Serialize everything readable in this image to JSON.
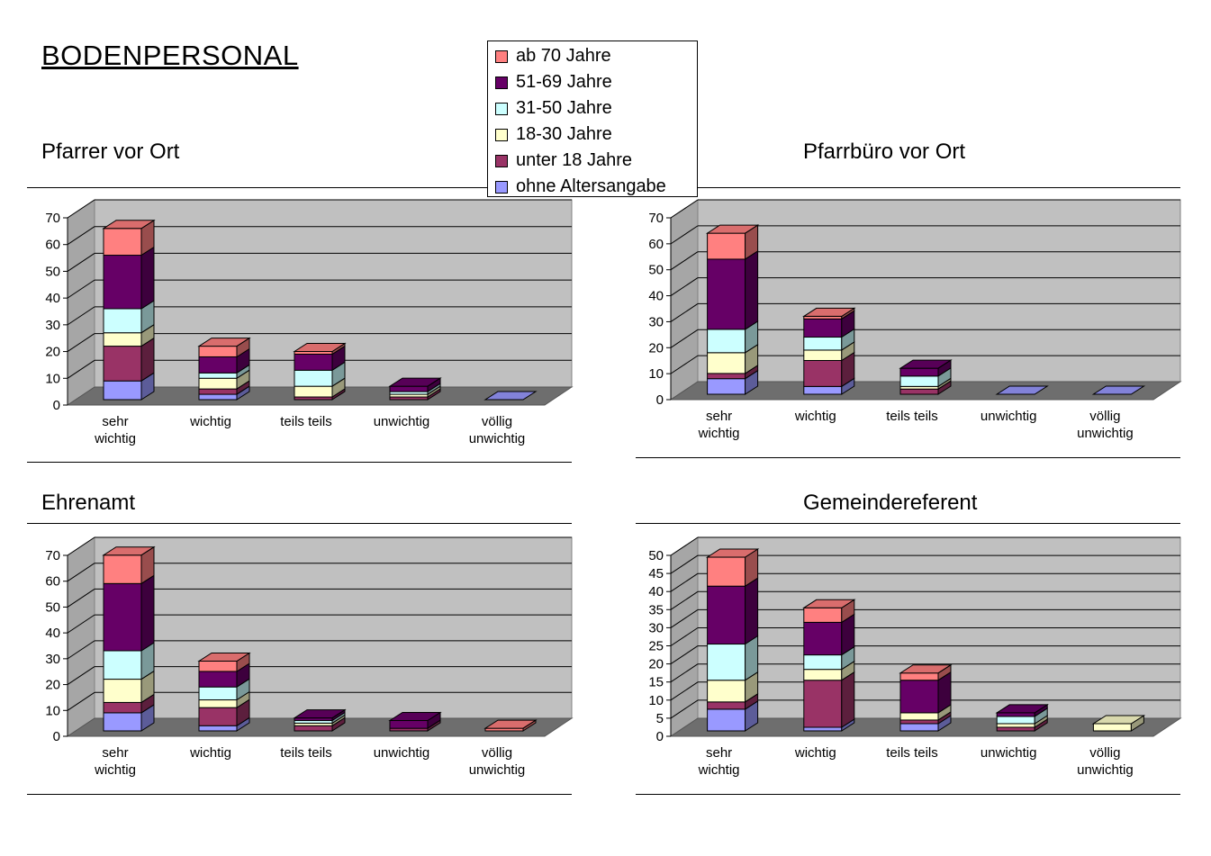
{
  "page_title": "BODENPERSONAL",
  "legend_entries": [
    {
      "label": "ab 70 Jahre",
      "color": "#FF8080"
    },
    {
      "label": "51-69 Jahre",
      "color": "#660066"
    },
    {
      "label": "31-50 Jahre",
      "color": "#CCFFFF"
    },
    {
      "label": "18-30 Jahre",
      "color": "#FFFFCC"
    },
    {
      "label": "unter 18 Jahre",
      "color": "#993366"
    },
    {
      "label": "ohne Altersangabe",
      "color": "#9999FF"
    }
  ],
  "chart_data": [
    {
      "type": "bar",
      "stacked": true,
      "title": "Pfarrer vor Ort",
      "categories": [
        "sehr wichtig",
        "wichtig",
        "teils teils",
        "unwichtig",
        "völlig unwichtig"
      ],
      "ylim": [
        0,
        70
      ],
      "yticks": [
        0,
        10,
        20,
        30,
        40,
        50,
        60,
        70
      ],
      "series": [
        {
          "name": "ohne Altersangabe",
          "values": [
            7,
            2,
            0,
            0,
            0
          ]
        },
        {
          "name": "unter 18 Jahre",
          "values": [
            13,
            2,
            1,
            1,
            0
          ]
        },
        {
          "name": "18-30 Jahre",
          "values": [
            5,
            4,
            4,
            1,
            0
          ]
        },
        {
          "name": "31-50 Jahre",
          "values": [
            9,
            2,
            6,
            1,
            0
          ]
        },
        {
          "name": "51-69 Jahre",
          "values": [
            20,
            6,
            6,
            2,
            0
          ]
        },
        {
          "name": "ab 70 Jahre",
          "values": [
            10,
            4,
            1,
            0,
            0
          ]
        }
      ]
    },
    {
      "type": "bar",
      "stacked": true,
      "title": "Pfarrbüro vor Ort",
      "categories": [
        "sehr wichtig",
        "wichtig",
        "teils teils",
        "unwichtig",
        "völlig unwichtig"
      ],
      "ylim": [
        0,
        70
      ],
      "yticks": [
        0,
        10,
        20,
        30,
        40,
        50,
        60,
        70
      ],
      "series": [
        {
          "name": "ohne Altersangabe",
          "values": [
            6,
            3,
            0,
            0,
            0
          ]
        },
        {
          "name": "unter 18 Jahre",
          "values": [
            2,
            10,
            2,
            0,
            0
          ]
        },
        {
          "name": "18-30 Jahre",
          "values": [
            8,
            4,
            1,
            0,
            0
          ]
        },
        {
          "name": "31-50 Jahre",
          "values": [
            9,
            5,
            4,
            0,
            0
          ]
        },
        {
          "name": "51-69 Jahre",
          "values": [
            27,
            7,
            3,
            0,
            0
          ]
        },
        {
          "name": "ab 70 Jahre",
          "values": [
            10,
            1,
            0,
            0,
            0
          ]
        }
      ]
    },
    {
      "type": "bar",
      "stacked": true,
      "title": "Ehrenamt",
      "categories": [
        "sehr wichtig",
        "wichtig",
        "teils teils",
        "unwichtig",
        "völlig unwichtig"
      ],
      "ylim": [
        0,
        70
      ],
      "yticks": [
        0,
        10,
        20,
        30,
        40,
        50,
        60,
        70
      ],
      "series": [
        {
          "name": "ohne Altersangabe",
          "values": [
            7,
            2,
            0,
            0,
            0
          ]
        },
        {
          "name": "unter 18 Jahre",
          "values": [
            4,
            7,
            2,
            1,
            0
          ]
        },
        {
          "name": "18-30 Jahre",
          "values": [
            9,
            3,
            1,
            0,
            0
          ]
        },
        {
          "name": "31-50 Jahre",
          "values": [
            11,
            5,
            1,
            0,
            0
          ]
        },
        {
          "name": "51-69 Jahre",
          "values": [
            26,
            6,
            1,
            3,
            0
          ]
        },
        {
          "name": "ab 70 Jahre",
          "values": [
            11,
            4,
            0,
            0,
            1
          ]
        }
      ]
    },
    {
      "type": "bar",
      "stacked": true,
      "title": "Gemeindereferent",
      "categories": [
        "sehr wichtig",
        "wichtig",
        "teils teils",
        "unwichtig",
        "völlig unwichtig"
      ],
      "ylim": [
        0,
        50
      ],
      "yticks": [
        0,
        5,
        10,
        15,
        20,
        25,
        30,
        35,
        40,
        45,
        50
      ],
      "series": [
        {
          "name": "ohne Altersangabe",
          "values": [
            6,
            1,
            2,
            0,
            0
          ]
        },
        {
          "name": "unter 18 Jahre",
          "values": [
            2,
            13,
            1,
            1,
            0
          ]
        },
        {
          "name": "18-30 Jahre",
          "values": [
            6,
            3,
            2,
            1,
            2
          ]
        },
        {
          "name": "31-50 Jahre",
          "values": [
            10,
            4,
            0,
            2,
            0
          ]
        },
        {
          "name": "51-69 Jahre",
          "values": [
            16,
            9,
            9,
            1,
            0
          ]
        },
        {
          "name": "ab 70 Jahre",
          "values": [
            8,
            4,
            2,
            0,
            0
          ]
        }
      ]
    }
  ]
}
